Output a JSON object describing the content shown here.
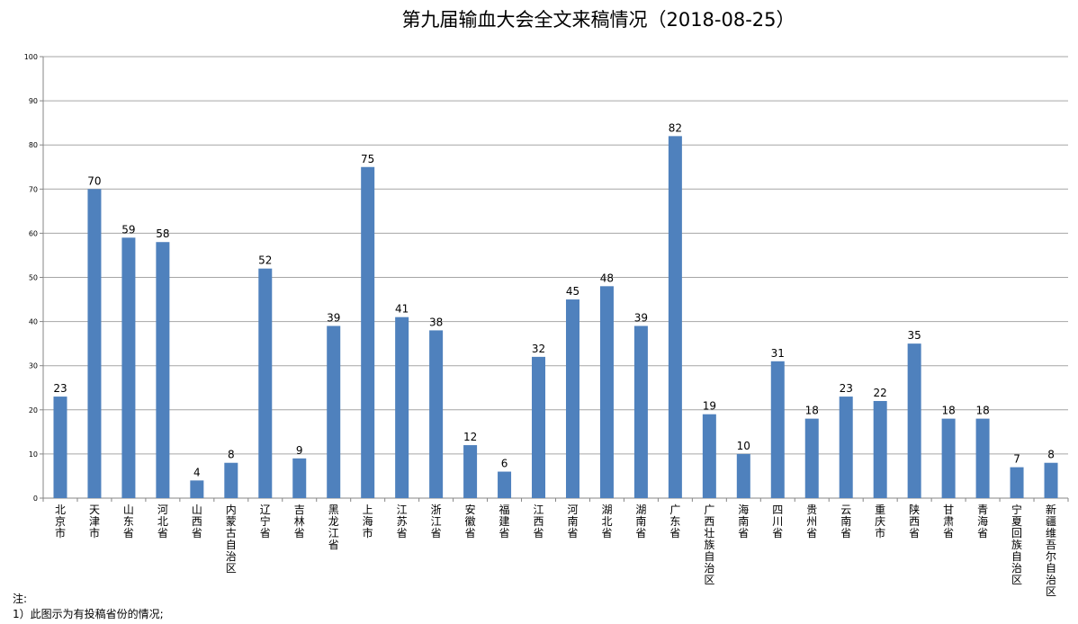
{
  "chart_data": {
    "type": "bar",
    "title": "第九届输血大会全文来稿情况（2018-08-25）",
    "xlabel": "",
    "ylabel": "",
    "ylim": [
      0,
      100
    ],
    "yticks": [
      0,
      10,
      20,
      30,
      40,
      50,
      60,
      70,
      80,
      90,
      100
    ],
    "grid": true,
    "bar_color": "#4f81bd",
    "categories": [
      "北京市",
      "天津市",
      "山东省",
      "河北省",
      "山西省",
      "内蒙古自治区",
      "辽宁省",
      "吉林省",
      "黑龙江省",
      "上海市",
      "江苏省",
      "浙江省",
      "安徽省",
      "福建省",
      "江西省",
      "河南省",
      "湖北省",
      "湖南省",
      "广东省",
      "广西壮族自治区",
      "海南省",
      "四川省",
      "贵州省",
      "云南省",
      "重庆市",
      "陕西省",
      "甘肃省",
      "青海省",
      "宁夏回族自治区",
      "新疆维吾尔自治区"
    ],
    "values": [
      23,
      70,
      59,
      58,
      4,
      8,
      52,
      9,
      39,
      75,
      41,
      38,
      12,
      6,
      32,
      45,
      48,
      39,
      82,
      19,
      10,
      31,
      18,
      23,
      22,
      35,
      18,
      18,
      7,
      8
    ]
  },
  "notes": {
    "heading": "注:",
    "line1": "1）此图示为有投稿省份的情况;"
  }
}
